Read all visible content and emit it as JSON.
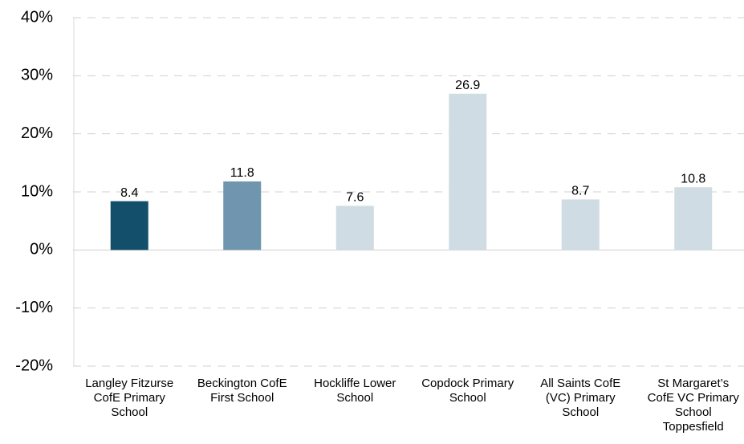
{
  "chart_data": {
    "type": "bar",
    "categories": [
      "Langley Fitzurse CofE Primary School",
      "Beckington CofE First School",
      "Hockliffe Lower School",
      "Copdock Primary School",
      "All Saints CofE (VC) Primary School",
      "St Margaret’s CofE VC Primary School Toppesfield"
    ],
    "values": [
      8.4,
      11.8,
      7.6,
      26.9,
      8.7,
      10.8
    ],
    "colors": [
      "#134f6b",
      "#6f96ae",
      "#d0dce4",
      "#d0dce4",
      "#d0dce4",
      "#d0dce4"
    ],
    "ylim": [
      -20,
      40
    ],
    "yticks": [
      {
        "value": -20,
        "label": "-20%"
      },
      {
        "value": -10,
        "label": "-10%"
      },
      {
        "value": 0,
        "label": "0%"
      },
      {
        "value": 10,
        "label": "10%"
      },
      {
        "value": 20,
        "label": "20%"
      },
      {
        "value": 30,
        "label": "30%"
      },
      {
        "value": 40,
        "label": "40%"
      }
    ],
    "grid": true
  }
}
